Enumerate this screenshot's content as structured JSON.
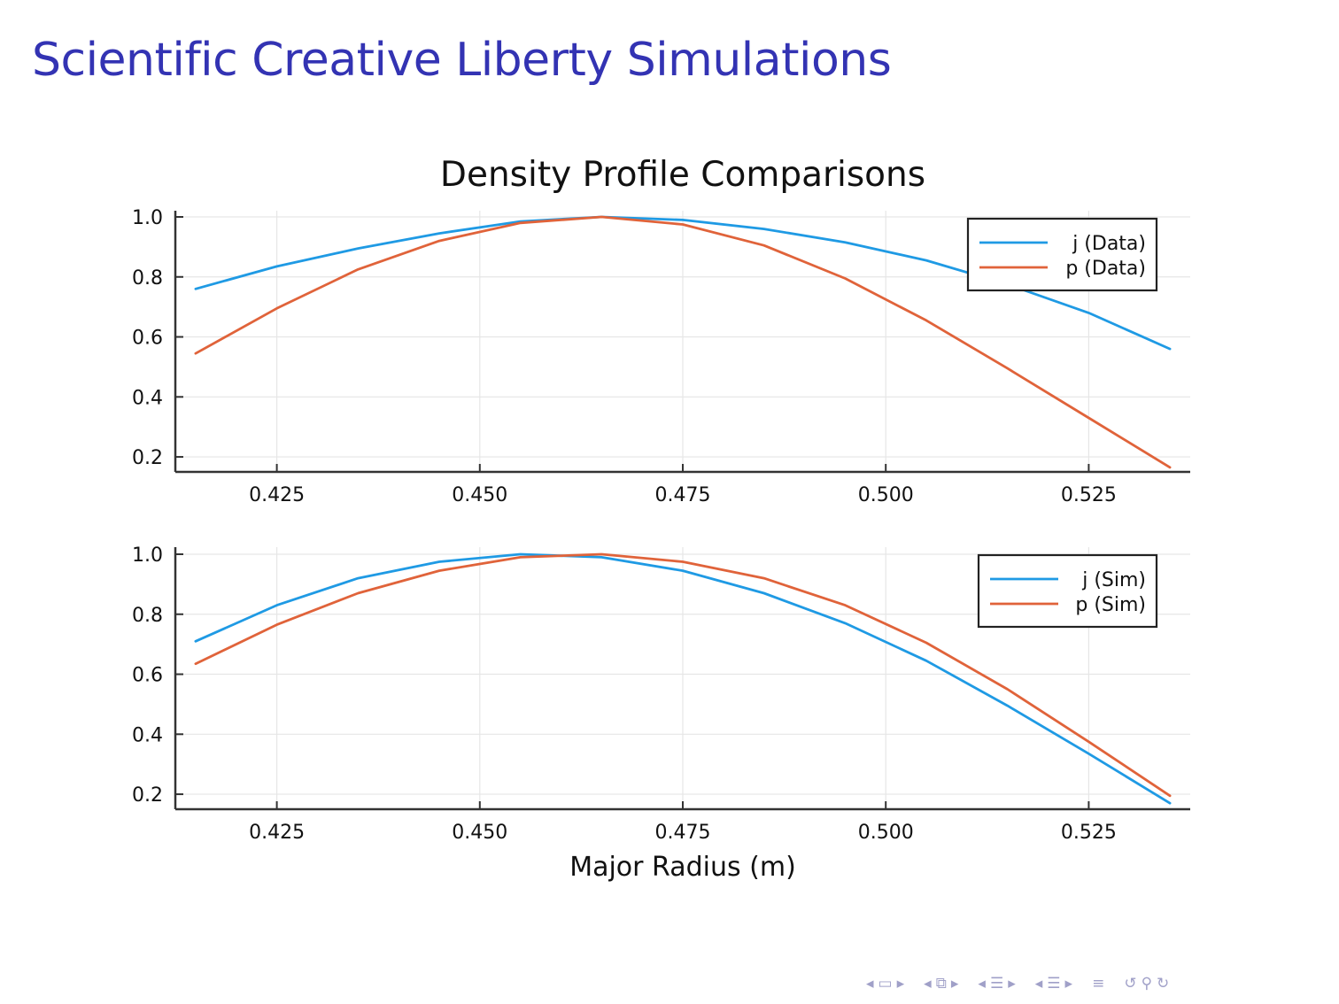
{
  "slide": {
    "title": "Scientific Creative Liberty Simulations"
  },
  "colors": {
    "title": "#3333b3",
    "series_j": "#1f9ae4",
    "series_p": "#e0633a",
    "navigation": "#a0a0c8"
  },
  "navigation": {
    "icons": [
      "arrow-left-icon",
      "frame-icon",
      "arrow-right-icon",
      "arrow-left-icon",
      "subsection-icon",
      "arrow-right-icon",
      "arrow-left-icon",
      "section-icon",
      "arrow-right-icon",
      "arrow-left-icon",
      "section-icon",
      "arrow-right-icon",
      "align-icon",
      "undo-icon",
      "search-icon",
      "redo-icon"
    ]
  },
  "chart_data": [
    {
      "type": "line",
      "title": "Density Profile Comparisons",
      "xlabel": "",
      "ylabel": "",
      "xlim": [
        0.4125,
        0.5375
      ],
      "ylim": [
        0.15,
        1.0
      ],
      "xticks": [
        "0.425",
        "0.450",
        "0.475",
        "0.500",
        "0.525"
      ],
      "yticks": [
        "0.2",
        "0.4",
        "0.6",
        "0.8",
        "1.0"
      ],
      "grid": true,
      "legend": "top-right",
      "x": [
        0.415,
        0.425,
        0.435,
        0.445,
        0.455,
        0.465,
        0.475,
        0.485,
        0.495,
        0.505,
        0.515,
        0.525,
        0.535
      ],
      "series": [
        {
          "name": "j (Data)",
          "color": "#1f9ae4",
          "values": [
            0.76,
            0.835,
            0.895,
            0.945,
            0.985,
            1.0,
            0.99,
            0.96,
            0.915,
            0.855,
            0.775,
            0.68,
            0.56
          ]
        },
        {
          "name": "p (Data)",
          "color": "#e0633a",
          "values": [
            0.545,
            0.695,
            0.825,
            0.92,
            0.98,
            1.0,
            0.975,
            0.905,
            0.795,
            0.655,
            0.495,
            0.33,
            0.165
          ]
        }
      ]
    },
    {
      "type": "line",
      "title": "",
      "xlabel": "Major Radius (m)",
      "ylabel": "",
      "xlim": [
        0.4125,
        0.5375
      ],
      "ylim": [
        0.15,
        1.0
      ],
      "xticks": [
        "0.425",
        "0.450",
        "0.475",
        "0.500",
        "0.525"
      ],
      "yticks": [
        "0.2",
        "0.4",
        "0.6",
        "0.8",
        "1.0"
      ],
      "grid": true,
      "legend": "top-right",
      "x": [
        0.415,
        0.425,
        0.435,
        0.445,
        0.455,
        0.465,
        0.475,
        0.485,
        0.495,
        0.505,
        0.515,
        0.525,
        0.535
      ],
      "series": [
        {
          "name": "j (Sim)",
          "color": "#1f9ae4",
          "values": [
            0.71,
            0.83,
            0.92,
            0.975,
            1.0,
            0.99,
            0.945,
            0.87,
            0.77,
            0.645,
            0.495,
            0.335,
            0.17
          ]
        },
        {
          "name": "p (Sim)",
          "color": "#e0633a",
          "values": [
            0.635,
            0.765,
            0.87,
            0.945,
            0.99,
            1.0,
            0.975,
            0.92,
            0.83,
            0.705,
            0.55,
            0.375,
            0.195
          ]
        }
      ]
    }
  ]
}
